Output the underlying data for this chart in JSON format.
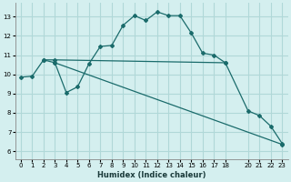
{
  "xlabel": "Humidex (Indice chaleur)",
  "bg_color": "#d4efef",
  "grid_color": "#b0d8d8",
  "line_color": "#1a6b6b",
  "xlim": [
    -0.5,
    23.5
  ],
  "ylim": [
    5.6,
    13.7
  ],
  "xticks": [
    0,
    1,
    2,
    3,
    4,
    5,
    6,
    7,
    8,
    9,
    10,
    11,
    12,
    13,
    14,
    15,
    16,
    17,
    18,
    20,
    21,
    22,
    23
  ],
  "yticks": [
    6,
    7,
    8,
    9,
    10,
    11,
    12,
    13
  ],
  "line1_x": [
    0,
    1,
    2,
    3,
    4,
    5,
    6,
    7,
    8,
    9,
    10,
    11,
    12,
    13,
    14,
    15,
    16,
    17,
    18,
    20,
    21,
    22,
    23
  ],
  "line1_y": [
    9.85,
    9.9,
    10.75,
    10.6,
    9.05,
    9.35,
    10.55,
    11.45,
    11.5,
    12.55,
    13.05,
    12.8,
    13.25,
    13.05,
    13.05,
    12.15,
    11.1,
    11.0,
    10.6,
    8.1,
    7.85,
    7.3,
    6.4
  ],
  "line2_x": [
    2,
    3,
    18
  ],
  "line2_y": [
    10.75,
    10.75,
    10.6
  ],
  "line3_x": [
    3,
    23
  ],
  "line3_y": [
    10.6,
    6.35
  ]
}
